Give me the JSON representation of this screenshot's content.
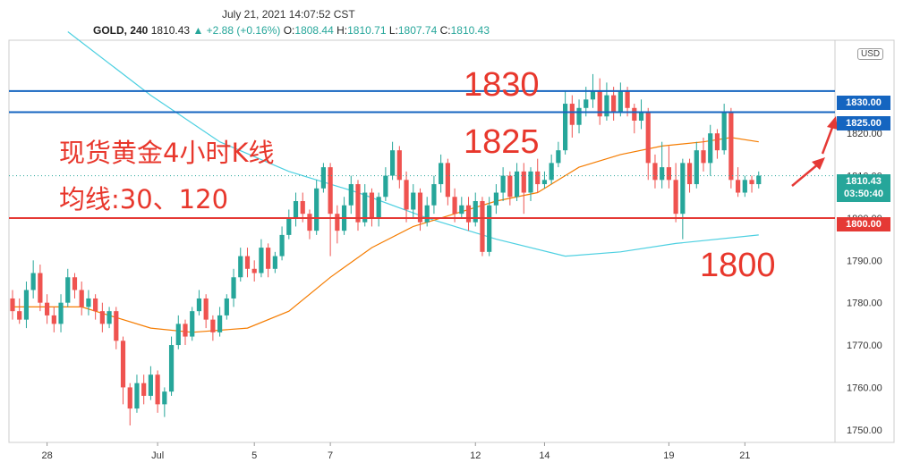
{
  "header": {
    "datetime": "July 21, 2021 14:07:52 CST",
    "symbol": "GOLD, 240",
    "last": "1810.43",
    "change": "▲ +2.88 (+0.16%)",
    "open_label": "O:",
    "open": "1808.44",
    "high_label": "H:",
    "high": "1810.71",
    "low_label": "L:",
    "low": "1807.74",
    "close_label": "C:",
    "close": "1810.43"
  },
  "annotations": {
    "title": "现货黄金4小时K线",
    "ma": "均线:30、120",
    "level_1830": "1830",
    "level_1825": "1825",
    "level_1800": "1800"
  },
  "price_labels": {
    "l1830": "1830.00",
    "l1825": "1825.00",
    "last_price": "1810.43",
    "countdown": "03:50:40",
    "l1800": "1800.00"
  },
  "currency": "USD",
  "colors": {
    "up": "#26a69a",
    "down": "#ef5350",
    "blue_line": "#1565c0",
    "red_line": "#e53935",
    "ma30": "#f57c00",
    "ma120": "#4dd0e1",
    "annotation": "#e8372c"
  },
  "chart_data": {
    "type": "candlestick",
    "symbol": "GOLD",
    "timeframe": "240",
    "ylim": [
      1747,
      1842
    ],
    "y_ticks": [
      1750,
      1760,
      1770,
      1780,
      1790,
      1800,
      1810,
      1820
    ],
    "x_tick_labels": [
      {
        "label": "28",
        "index": 5
      },
      {
        "label": "Jul",
        "index": 21
      },
      {
        "label": "5",
        "index": 35
      },
      {
        "label": "7",
        "index": 46
      },
      {
        "label": "12",
        "index": 67
      },
      {
        "label": "14",
        "index": 77
      },
      {
        "label": "19",
        "index": 95
      },
      {
        "label": "21",
        "index": 106
      }
    ],
    "horizontal_lines": [
      {
        "value": 1830,
        "color": "blue"
      },
      {
        "value": 1825,
        "color": "blue"
      },
      {
        "value": 1800,
        "color": "red"
      }
    ],
    "candles": [
      [
        1781,
        1778,
        1783,
        1776
      ],
      [
        1778,
        1776,
        1781,
        1775
      ],
      [
        1776,
        1783,
        1785,
        1774
      ],
      [
        1783,
        1787,
        1790,
        1781
      ],
      [
        1787,
        1780,
        1789,
        1778
      ],
      [
        1780,
        1777,
        1782,
        1775
      ],
      [
        1777,
        1775,
        1779,
        1773
      ],
      [
        1775,
        1780,
        1782,
        1773
      ],
      [
        1780,
        1786,
        1788,
        1779
      ],
      [
        1786,
        1783,
        1787,
        1781
      ],
      [
        1783,
        1779,
        1785,
        1777
      ],
      [
        1779,
        1781,
        1783,
        1777
      ],
      [
        1781,
        1778,
        1782,
        1776
      ],
      [
        1778,
        1775,
        1780,
        1773
      ],
      [
        1775,
        1778,
        1779,
        1774
      ],
      [
        1778,
        1771,
        1779,
        1769
      ],
      [
        1771,
        1760,
        1772,
        1756
      ],
      [
        1760,
        1755,
        1761,
        1751
      ],
      [
        1755,
        1761,
        1763,
        1754
      ],
      [
        1761,
        1758,
        1763,
        1756
      ],
      [
        1758,
        1763,
        1765,
        1757
      ],
      [
        1763,
        1756,
        1764,
        1754
      ],
      [
        1756,
        1759,
        1760,
        1753
      ],
      [
        1759,
        1770,
        1772,
        1758
      ],
      [
        1770,
        1775,
        1777,
        1769
      ],
      [
        1775,
        1772,
        1776,
        1770
      ],
      [
        1772,
        1778,
        1779,
        1771
      ],
      [
        1778,
        1781,
        1783,
        1777
      ],
      [
        1781,
        1776,
        1782,
        1774
      ],
      [
        1776,
        1773,
        1777,
        1771
      ],
      [
        1773,
        1777,
        1779,
        1772
      ],
      [
        1777,
        1781,
        1782,
        1776
      ],
      [
        1781,
        1786,
        1788,
        1779
      ],
      [
        1786,
        1791,
        1793,
        1785
      ],
      [
        1791,
        1788,
        1793,
        1786
      ],
      [
        1788,
        1787,
        1790,
        1785
      ],
      [
        1787,
        1793,
        1795,
        1786
      ],
      [
        1793,
        1788,
        1794,
        1786
      ],
      [
        1788,
        1791,
        1792,
        1787
      ],
      [
        1791,
        1796,
        1798,
        1790
      ],
      [
        1796,
        1800,
        1802,
        1795
      ],
      [
        1800,
        1804,
        1806,
        1798
      ],
      [
        1804,
        1801,
        1806,
        1799
      ],
      [
        1801,
        1797,
        1802,
        1795
      ],
      [
        1797,
        1807,
        1809,
        1796
      ],
      [
        1807,
        1812,
        1813,
        1806
      ],
      [
        1812,
        1801,
        1813,
        1791
      ],
      [
        1801,
        1797,
        1803,
        1794
      ],
      [
        1797,
        1803,
        1805,
        1796
      ],
      [
        1803,
        1808,
        1810,
        1801
      ],
      [
        1808,
        1799,
        1809,
        1797
      ],
      [
        1799,
        1806,
        1808,
        1798
      ],
      [
        1806,
        1800,
        1807,
        1798
      ],
      [
        1800,
        1805,
        1806,
        1798
      ],
      [
        1805,
        1810,
        1812,
        1804
      ],
      [
        1810,
        1816,
        1818,
        1809
      ],
      [
        1816,
        1809,
        1817,
        1807
      ],
      [
        1809,
        1802,
        1811,
        1799
      ],
      [
        1802,
        1806,
        1808,
        1800
      ],
      [
        1806,
        1799,
        1807,
        1797
      ],
      [
        1799,
        1803,
        1805,
        1798
      ],
      [
        1803,
        1808,
        1810,
        1801
      ],
      [
        1808,
        1813,
        1815,
        1806
      ],
      [
        1813,
        1805,
        1814,
        1803
      ],
      [
        1805,
        1801,
        1807,
        1799
      ],
      [
        1801,
        1803,
        1805,
        1800
      ],
      [
        1803,
        1799,
        1805,
        1797
      ],
      [
        1799,
        1804,
        1806,
        1798
      ],
      [
        1804,
        1792,
        1805,
        1791
      ],
      [
        1792,
        1803,
        1805,
        1791
      ],
      [
        1803,
        1806,
        1808,
        1801
      ],
      [
        1806,
        1810,
        1812,
        1804
      ],
      [
        1810,
        1805,
        1811,
        1803
      ],
      [
        1805,
        1811,
        1813,
        1804
      ],
      [
        1811,
        1806,
        1813,
        1801
      ],
      [
        1806,
        1811,
        1812,
        1804
      ],
      [
        1811,
        1808,
        1814,
        1806
      ],
      [
        1808,
        1809,
        1811,
        1807
      ],
      [
        1809,
        1813,
        1815,
        1808
      ],
      [
        1813,
        1816,
        1818,
        1812
      ],
      [
        1816,
        1827,
        1830,
        1815
      ],
      [
        1827,
        1822,
        1829,
        1819
      ],
      [
        1822,
        1826,
        1828,
        1820
      ],
      [
        1826,
        1828,
        1831,
        1824
      ],
      [
        1828,
        1830,
        1834,
        1826
      ],
      [
        1830,
        1824,
        1833,
        1822
      ],
      [
        1824,
        1829,
        1832,
        1823
      ],
      [
        1829,
        1825,
        1831,
        1823
      ],
      [
        1825,
        1830,
        1832,
        1824
      ],
      [
        1830,
        1826,
        1831,
        1824
      ],
      [
        1826,
        1823,
        1827,
        1820
      ],
      [
        1823,
        1825,
        1828,
        1821
      ],
      [
        1825,
        1813,
        1826,
        1809
      ],
      [
        1813,
        1809,
        1815,
        1807
      ],
      [
        1809,
        1812,
        1818,
        1807
      ],
      [
        1812,
        1809,
        1817,
        1807
      ],
      [
        1809,
        1801,
        1813,
        1799
      ],
      [
        1801,
        1813,
        1814,
        1795
      ],
      [
        1813,
        1808,
        1814,
        1806
      ],
      [
        1808,
        1816,
        1818,
        1807
      ],
      [
        1816,
        1813,
        1819,
        1811
      ],
      [
        1813,
        1820,
        1822,
        1810
      ],
      [
        1820,
        1816,
        1821,
        1814
      ],
      [
        1816,
        1825,
        1827,
        1815
      ],
      [
        1825,
        1809,
        1826,
        1807
      ],
      [
        1809,
        1806,
        1812,
        1805
      ],
      [
        1806,
        1809,
        1810,
        1805
      ],
      [
        1809,
        1808,
        1810,
        1806
      ],
      [
        1808,
        1810,
        1811,
        1807
      ]
    ],
    "ma30": [
      [
        0,
        1779
      ],
      [
        10,
        1779
      ],
      [
        20,
        1774
      ],
      [
        26,
        1773
      ],
      [
        34,
        1774
      ],
      [
        40,
        1778
      ],
      [
        46,
        1786
      ],
      [
        52,
        1793
      ],
      [
        58,
        1798
      ],
      [
        64,
        1801
      ],
      [
        70,
        1804
      ],
      [
        76,
        1806
      ],
      [
        82,
        1812
      ],
      [
        88,
        1815
      ],
      [
        94,
        1817
      ],
      [
        100,
        1818
      ],
      [
        104,
        1819
      ],
      [
        108,
        1818
      ]
    ],
    "ma120": [
      [
        8,
        1844
      ],
      [
        20,
        1829
      ],
      [
        30,
        1818
      ],
      [
        40,
        1811
      ],
      [
        50,
        1806
      ],
      [
        60,
        1800
      ],
      [
        70,
        1795
      ],
      [
        80,
        1791
      ],
      [
        88,
        1792
      ],
      [
        96,
        1794
      ],
      [
        108,
        1796
      ]
    ]
  }
}
